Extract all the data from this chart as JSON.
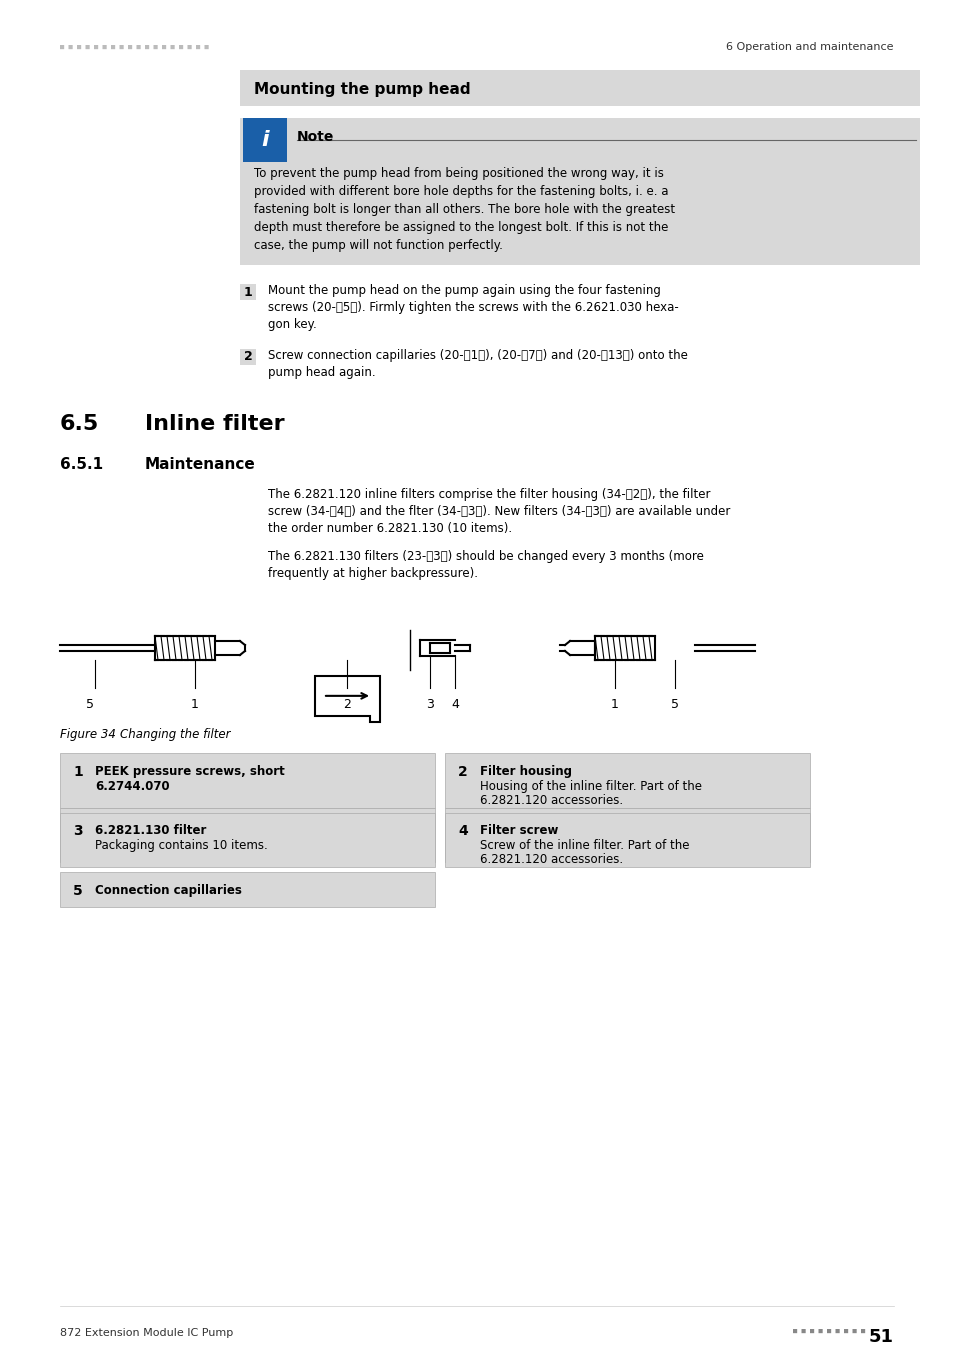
{
  "page_bg": "#ffffff",
  "header_dots_color": "#aaaaaa",
  "header_right_text": "6 Operation and maintenance",
  "section_bg": "#d8d8d8",
  "note_bg": "#d8d8d8",
  "blue_box_color": "#1a5fa8",
  "mounting_title": "Mounting the pump head",
  "note_label": "Note",
  "note_text": "To prevent the pump head from being positioned the wrong way, it is\nprovided with different bore hole depths for the fastening bolts, i. e. a\nfastening bolt is longer than all others. The bore hole with the greatest\ndepth must therefore be assigned to the longest bolt. If this is not the\ncase, the pump will not function perfectly.",
  "step1_text": "Mount the pump head on the pump again using the four fastening\nscrews (20-\u00035\u0003). Firmly tighten the screws with the 6.2621.030 hexa-\ngon key.",
  "step2_text": "Screw connection capillaries (20-\u00031\u0003), (20-\u00037\u0003) and (20-\u000313\u0003) onto the\npump head again.",
  "section65_num": "6.5",
  "section65_title": "Inline filter",
  "section651_num": "6.5.1",
  "section651_title": "Maintenance",
  "para1": "The 6.2821.120 inline filters comprise the filter housing (34-\u00032\u0003), the filter\nscrew (34-\u00034\u0003) and the flter (34-\u00033\u0003). New filters (34-\u00033\u0003) are available under\nthe order number 6.2821.130 (10 items).",
  "para2": "The 6.2821.130 filters (23-\u00033\u0003) should be changed every 3 months (more\nfrequently at higher backpressure).",
  "figure_caption": "Figure 34",
  "figure_desc": "Changing the filter",
  "table_items": [
    {
      "num": "1",
      "title": "PEEK pressure screws, short\n6.2744.070",
      "col": 0
    },
    {
      "num": "2",
      "title": "Filter housing\nHousing of the inline filter. Part of the\n6.2821.120 accessories.",
      "col": 1
    },
    {
      "num": "3",
      "title": "6.2821.130 filter\nPackaging contains 10 items.",
      "col": 0
    },
    {
      "num": "4",
      "title": "Filter screw\nScrew of the inline filter. Part of the\n6.2821.120 accessories.",
      "col": 1
    },
    {
      "num": "5",
      "title": "Connection capillaries",
      "col": 0
    }
  ],
  "footer_dots": "■■■■■■■■■",
  "footer_page": "51",
  "footer_left": "872 Extension Module IC Pump"
}
